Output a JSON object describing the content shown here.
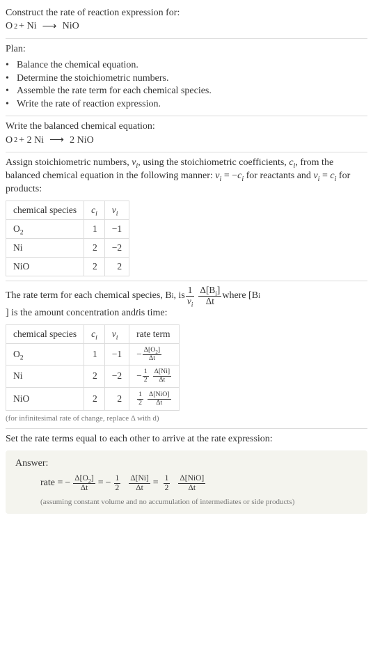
{
  "intro": {
    "prompt": "Construct the rate of reaction expression for:",
    "reactants": "O",
    "reactants_sub": "2",
    "plus": " + Ni ",
    "arrow": "⟶",
    "products": " NiO"
  },
  "plan": {
    "title": "Plan:",
    "items": [
      "Balance the chemical equation.",
      "Determine the stoichiometric numbers.",
      "Assemble the rate term for each chemical species.",
      "Write the rate of reaction expression."
    ],
    "bullet": "•"
  },
  "balanced": {
    "title": "Write the balanced chemical equation:",
    "lhs_o": "O",
    "lhs_o_sub": "2",
    "plus": " + 2 Ni ",
    "arrow": "⟶",
    "rhs": " 2 NiO"
  },
  "assign": {
    "text_a": "Assign stoichiometric numbers, ",
    "nu_i": "ν",
    "sub_i": "i",
    "text_b": ", using the stoichiometric coefficients, ",
    "c_i": "c",
    "text_c": ", from the balanced chemical equation in the following manner: ",
    "eq1_lhs": "ν",
    "eq1_eq": " = −",
    "eq1_rhs": "c",
    "text_d": " for reactants and ",
    "eq2_lhs": "ν",
    "eq2_eq": " = ",
    "eq2_rhs": "c",
    "text_e": " for products:"
  },
  "table1": {
    "headers": {
      "species": "chemical species",
      "c": "c",
      "nu": "ν",
      "sub": "i"
    },
    "rows": [
      {
        "sp_a": "O",
        "sp_sub": "2",
        "c": "1",
        "nu": "−1"
      },
      {
        "sp_a": "Ni",
        "sp_sub": "",
        "c": "2",
        "nu": "−2"
      },
      {
        "sp_a": "NiO",
        "sp_sub": "",
        "c": "2",
        "nu": "2"
      }
    ]
  },
  "rateterm": {
    "text_a": "The rate term for each chemical species, B",
    "sub_i": "i",
    "text_b": ", is ",
    "frac1_num": "1",
    "frac1_den_a": "ν",
    "frac2_num_a": "Δ[B",
    "frac2_num_b": "]",
    "frac2_den": "Δt",
    "text_c": " where [B",
    "text_d": "] is the amount concentration and ",
    "t": "t",
    "text_e": " is time:"
  },
  "table2": {
    "headers": {
      "species": "chemical species",
      "c": "c",
      "nu": "ν",
      "rate": "rate term",
      "sub": "i"
    },
    "rows": [
      {
        "sp_a": "O",
        "sp_sub": "2",
        "c": "1",
        "nu": "−1",
        "pre": "−",
        "coef_num": "",
        "coef_den": "",
        "num_a": "Δ[O",
        "num_sub": "2",
        "num_b": "]",
        "den": "Δt"
      },
      {
        "sp_a": "Ni",
        "sp_sub": "",
        "c": "2",
        "nu": "−2",
        "pre": "−",
        "coef_num": "1",
        "coef_den": "2",
        "num_a": "Δ[Ni",
        "num_sub": "",
        "num_b": "]",
        "den": "Δt"
      },
      {
        "sp_a": "NiO",
        "sp_sub": "",
        "c": "2",
        "nu": "2",
        "pre": "",
        "coef_num": "1",
        "coef_den": "2",
        "num_a": "Δ[NiO",
        "num_sub": "",
        "num_b": "]",
        "den": "Δt"
      }
    ],
    "caption": "(for infinitesimal rate of change, replace Δ with d)"
  },
  "set": {
    "text": "Set the rate terms equal to each other to arrive at the rate expression:"
  },
  "answer": {
    "title": "Answer:",
    "rate": "rate = ",
    "t1_pre": "−",
    "t1_num_a": "Δ[O",
    "t1_num_sub": "2",
    "t1_num_b": "]",
    "t1_den": "Δt",
    "eq": " = ",
    "t2_pre": "−",
    "t2_cnum": "1",
    "t2_cden": "2",
    "t2_num_a": "Δ[Ni",
    "t2_num_sub": "",
    "t2_num_b": "]",
    "t2_den": "Δt",
    "t3_pre": "",
    "t3_cnum": "1",
    "t3_cden": "2",
    "t3_num_a": "Δ[NiO",
    "t3_num_sub": "",
    "t3_num_b": "]",
    "t3_den": "Δt",
    "note": "(assuming constant volume and no accumulation of intermediates or side products)"
  }
}
